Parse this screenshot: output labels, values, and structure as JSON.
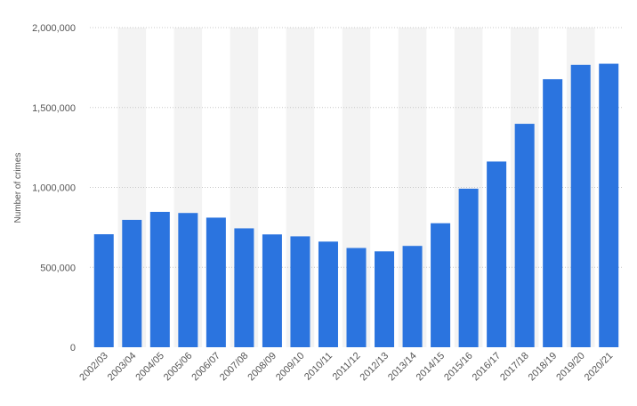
{
  "colors": {
    "bar": "#2b74df",
    "band": "#f3f3f3",
    "grid": "#c8c8c8",
    "text": "#555555"
  },
  "chart_data": {
    "type": "bar",
    "title": "",
    "xlabel": "",
    "ylabel": "Number of crimes",
    "ylim": [
      0,
      2000000
    ],
    "yticks": [
      0,
      500000,
      1000000,
      1500000,
      2000000
    ],
    "ytick_labels": [
      "0",
      "500,000",
      "1,000,000",
      "1,500,000",
      "2,000,000"
    ],
    "grid": true,
    "categories": [
      "2002/03",
      "2003/04",
      "2004/05",
      "2005/06",
      "2006/07",
      "2007/08",
      "2008/09",
      "2009/10",
      "2010/11",
      "2011/12",
      "2012/13",
      "2013/14",
      "2014/15",
      "2015/16",
      "2016/17",
      "2017/18",
      "2018/19",
      "2019/20",
      "2020/21"
    ],
    "values": [
      707000,
      797000,
      847000,
      840000,
      811000,
      744000,
      706000,
      694000,
      661000,
      621000,
      600000,
      634000,
      776000,
      992000,
      1162000,
      1398000,
      1677000,
      1767000,
      1774000
    ]
  }
}
